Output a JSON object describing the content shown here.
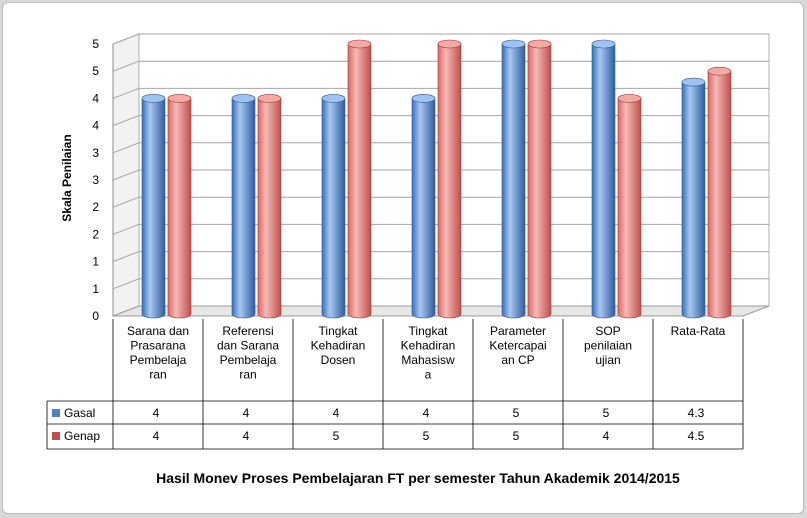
{
  "chart_data": {
    "type": "bar",
    "title": "Hasil Monev Proses Pembelajaran FT per semester Tahun Akademik 2014/2015",
    "ylabel": "Skala Penilaian",
    "ylim": [
      0,
      5
    ],
    "ytick_labels": [
      "0",
      "1",
      "1",
      "2",
      "2",
      "3",
      "3",
      "4",
      "4",
      "5",
      "5"
    ],
    "categories": [
      [
        "Sarana dan",
        "Prasarana",
        "Pembelaja",
        "ran"
      ],
      [
        "Referensi",
        "dan Sarana",
        "Pembelaja",
        "ran"
      ],
      [
        "Tingkat",
        "Kehadiran",
        "Dosen"
      ],
      [
        "Tingkat",
        "Kehadiran",
        "Mahasisw",
        "a"
      ],
      [
        "Parameter",
        "Ketercapai",
        "an CP"
      ],
      [
        "SOP",
        "penilaian",
        "ujian"
      ],
      [
        "Rata-Rata"
      ]
    ],
    "series": [
      {
        "name": "Gasal",
        "values": [
          4,
          4,
          4,
          4,
          5,
          5,
          4.3
        ],
        "labels": [
          "4",
          "4",
          "4",
          "4",
          "5",
          "5",
          "4.3"
        ],
        "color": "#4f81bd"
      },
      {
        "name": "Genap",
        "values": [
          4,
          4,
          5,
          5,
          5,
          4,
          4.5
        ],
        "labels": [
          "4",
          "4",
          "5",
          "5",
          "5",
          "4",
          "4.5"
        ],
        "color": "#c0504d"
      }
    ],
    "grid": true,
    "legend": "data-table"
  }
}
